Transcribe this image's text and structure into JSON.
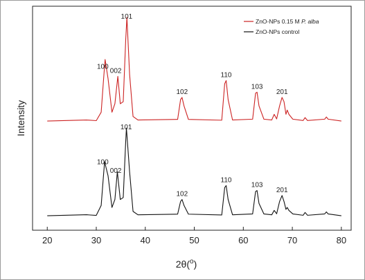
{
  "chart_data": {
    "type": "line",
    "xlabel": "2θ(",
    "xlabel_sup": "o",
    "xlabel_close": ")",
    "ylabel": "Intensity",
    "xlim": [
      17,
      82
    ],
    "xticks": [
      20,
      30,
      40,
      50,
      60,
      70,
      80
    ],
    "yaxis_ticks": "none",
    "grid": false,
    "legend": "top-right",
    "series": [
      {
        "name": "ZnO-NPs 0.15 M P. alba",
        "name_prefix": "ZnO-NPs 0.15 M ",
        "name_italic": "P. alba",
        "color": "#cc2222",
        "baseline": 0.6,
        "x": [
          20,
          28,
          30,
          31.0,
          31.5,
          31.8,
          32.4,
          33.2,
          33.8,
          34.4,
          34.9,
          35.5,
          36.0,
          36.25,
          36.8,
          37.5,
          38.5,
          46.6,
          47.2,
          47.5,
          47.9,
          48.8,
          55.6,
          56.2,
          56.5,
          56.9,
          57.8,
          61.9,
          62.5,
          62.8,
          63.2,
          64.2,
          65.8,
          66.3,
          66.8,
          67.4,
          67.9,
          68.3,
          68.7,
          68.95,
          69.3,
          70.1,
          72.2,
          72.6,
          73.1,
          76.6,
          76.95,
          77.3,
          80
        ],
        "y": [
          0,
          0.2,
          0.4,
          8,
          40,
          58,
          40,
          8,
          16,
          42,
          16,
          18,
          76,
          98,
          44,
          4,
          1,
          0.8,
          20,
          22,
          14,
          0.8,
          0.8,
          35,
          38,
          20,
          1,
          1,
          26,
          27,
          14,
          1,
          1,
          6,
          2,
          14,
          22,
          18,
          6,
          10,
          6,
          1,
          0.5,
          2.5,
          0.5,
          1,
          3.5,
          1,
          0
        ]
      },
      {
        "name": "ZnO-NPs control",
        "color": "#111111",
        "baseline": 0.6,
        "x": [
          20,
          28,
          30,
          31.0,
          31.5,
          31.7,
          32.4,
          33.2,
          33.8,
          34.3,
          34.9,
          35.5,
          36.0,
          36.15,
          36.8,
          37.5,
          38.5,
          46.6,
          47.2,
          47.5,
          47.9,
          48.8,
          55.6,
          56.2,
          56.5,
          56.9,
          57.8,
          61.9,
          62.5,
          62.8,
          63.2,
          64.2,
          65.8,
          66.3,
          66.8,
          67.4,
          67.9,
          68.3,
          68.7,
          68.95,
          69.3,
          70.1,
          72.2,
          72.6,
          73.1,
          76.6,
          76.95,
          77.3,
          80
        ],
        "y": [
          0,
          0.2,
          0.4,
          10,
          42,
          54,
          40,
          8,
          16,
          44,
          16,
          18,
          74,
          88,
          44,
          4,
          1,
          0.8,
          14,
          16,
          10,
          0.8,
          0.8,
          28,
          30,
          16,
          1,
          1,
          24,
          25,
          12,
          1,
          1,
          5,
          2,
          14,
          20,
          14,
          6,
          8,
          5,
          1,
          0.5,
          2.5,
          0.5,
          1,
          3.5,
          1,
          0
        ]
      }
    ],
    "annotations": [
      {
        "text": "100",
        "series": 0,
        "x": 31.6
      },
      {
        "text": "002",
        "series": 0,
        "x": 34.4
      },
      {
        "text": "101",
        "series": 0,
        "x": 36.2
      },
      {
        "text": "102",
        "series": 0,
        "x": 47.5
      },
      {
        "text": "110",
        "series": 0,
        "x": 56.5
      },
      {
        "text": "103",
        "series": 0,
        "x": 62.8
      },
      {
        "text": "201",
        "series": 0,
        "x": 67.9
      },
      {
        "text": "100",
        "series": 1,
        "x": 31.6
      },
      {
        "text": "002",
        "series": 1,
        "x": 34.4
      },
      {
        "text": "101",
        "series": 1,
        "x": 36.1
      },
      {
        "text": "102",
        "series": 1,
        "x": 47.5
      },
      {
        "text": "110",
        "series": 1,
        "x": 56.5
      },
      {
        "text": "103",
        "series": 1,
        "x": 62.8
      },
      {
        "text": "201",
        "series": 1,
        "x": 67.9
      }
    ]
  }
}
